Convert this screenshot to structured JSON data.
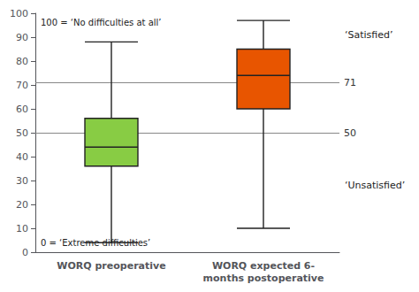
{
  "chart_data": {
    "type": "boxplot",
    "categories": [
      "WORQ preoperative",
      "WORQ expected 6-\nmonths postoperative"
    ],
    "values": [
      [
        4,
        36,
        44,
        56,
        88
      ],
      [
        10,
        60,
        74,
        85,
        97
      ]
    ],
    "colors": [
      "#88cc44",
      "#e85500"
    ],
    "color": "#222222",
    "hlines": [
      {
        "y": 50,
        "label": "50",
        "color": "#888888"
      },
      {
        "y": 71,
        "label": "71",
        "color": "#888888"
      }
    ],
    "annotations": [
      {
        "text": "100 = ‘No difficulties at all’",
        "y": 96
      },
      {
        "text": "0 = ‘Extreme difficulties’",
        "y": 4
      },
      {
        "text": "‘Satisfied’",
        "y": 91
      },
      {
        "text": "‘Unsatisfied’",
        "y": 28
      }
    ],
    "ylim": [
      0,
      100
    ],
    "yticks": [
      0,
      10,
      20,
      30,
      40,
      50,
      60,
      70,
      80,
      90,
      100
    ],
    "grid": false
  }
}
